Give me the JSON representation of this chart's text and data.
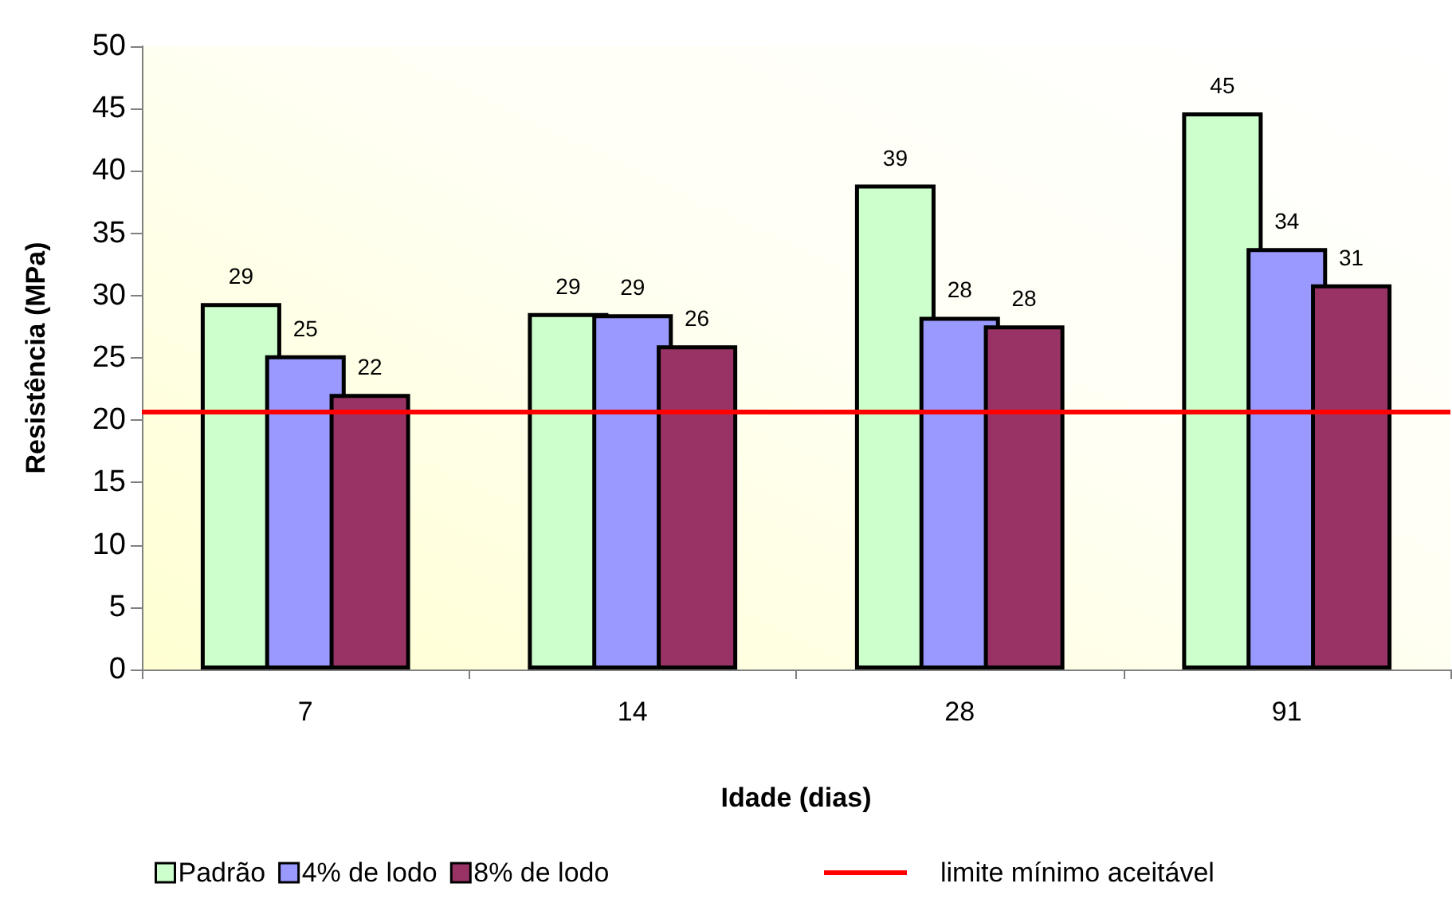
{
  "chart_data": {
    "type": "bar",
    "xlabel": "Idade (dias)",
    "ylabel": "Resistência (MPa)",
    "categories": [
      "7",
      "14",
      "28",
      "91"
    ],
    "series": [
      {
        "name": "Padrão",
        "color": "#ccffcc",
        "values": [
          29.4,
          28.6,
          38.9,
          44.7
        ],
        "value_labels": [
          "29",
          "29",
          "39",
          "45"
        ]
      },
      {
        "name": "4% de lodo",
        "color": "#9999ff",
        "values": [
          25.2,
          28.5,
          28.3,
          33.8
        ],
        "value_labels": [
          "25",
          "29",
          "28",
          "34"
        ]
      },
      {
        "name": "8% de lodo",
        "color": "#993366",
        "values": [
          22.1,
          26.0,
          27.6,
          30.9
        ],
        "value_labels": [
          "22",
          "26",
          "28",
          "31"
        ]
      }
    ],
    "ylim": [
      0,
      50
    ],
    "yticks": [
      0,
      5,
      10,
      15,
      20,
      25,
      30,
      35,
      40,
      45,
      50
    ],
    "grid": false,
    "legend": "bottom",
    "ref_lines": [
      {
        "axis": "y",
        "value": 20.7,
        "label": "limite mínimo aceitável",
        "color": "#ff0000"
      }
    ]
  }
}
